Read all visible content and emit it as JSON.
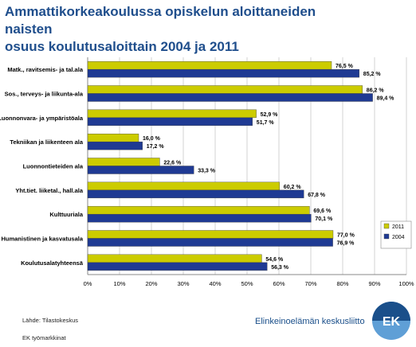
{
  "title": "Ammattikorkeakoulussa opiskelun aloittaneiden naisten\nosuus  koulutusaloittain  2004 ja 2011",
  "chart_data": {
    "type": "bar",
    "orientation": "horizontal",
    "categories": [
      "Matk., ravitsemis- ja tal.ala",
      "Sos., terveys- ja liikunta-ala",
      "Luonnonvara- ja ympäristöala",
      "Tekniikan ja liikenteen ala",
      "Luonnontieteiden ala",
      "Yht.tiet. liiketal., hall.ala",
      "Kulttuuriala",
      "Humanistinen ja kasvatusala",
      "Koulutusalatyhteensä"
    ],
    "series": [
      {
        "name": "2011",
        "color": "#cccc00",
        "values": [
          76.5,
          86.2,
          52.9,
          16.0,
          22.6,
          60.2,
          69.6,
          77.0,
          54.6
        ],
        "labels": [
          "76,5 %",
          "86,2 %",
          "52,9 %",
          "16,0 %",
          "22,6 %",
          "60,2 %",
          "69,6 %",
          "77,0 %",
          "54,6 %"
        ]
      },
      {
        "name": "2004",
        "color": "#1f3a93",
        "values": [
          85.2,
          89.4,
          51.7,
          17.2,
          33.3,
          67.8,
          70.1,
          76.9,
          56.3
        ],
        "labels": [
          "85,2 %",
          "89,4 %",
          "51,7 %",
          "17,2 %",
          "33,3 %",
          "67,8 %",
          "70,1 %",
          "76,9 %",
          "56,3 %"
        ]
      }
    ],
    "xlim": [
      0,
      100
    ],
    "xticks": [
      "0%",
      "10%",
      "20%",
      "30%",
      "40%",
      "50%",
      "60%",
      "70%",
      "80%",
      "90%",
      "100%"
    ],
    "grid": true,
    "legend": "bottom-right"
  },
  "footer": {
    "source": "Lähde: Tilastokeskus",
    "org": "EK työmarkkinat",
    "logo_text": "Elinkeinoelämän keskusliitto",
    "logo_letters": "EK"
  }
}
